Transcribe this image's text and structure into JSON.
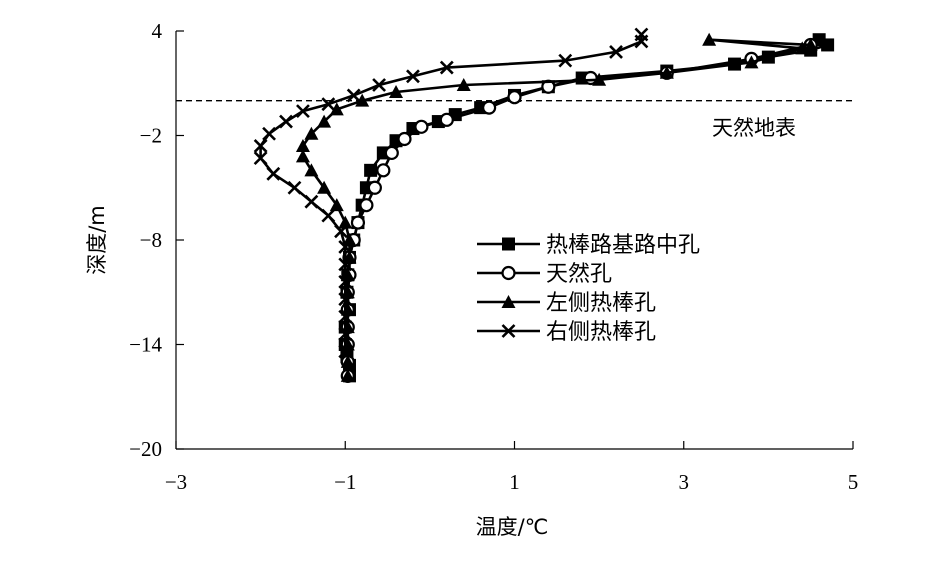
{
  "chart_data": {
    "type": "line",
    "xlabel": "温度/℃",
    "ylabel": "深度/m",
    "xlim": [
      -3,
      5
    ],
    "ylim": [
      -20,
      4
    ],
    "xticks": [
      "−3",
      "−1",
      "1",
      "3",
      "5"
    ],
    "yticks": [
      "4",
      "−2",
      "−8",
      "−14",
      "−20"
    ],
    "legend_position": "center-right",
    "grid": false,
    "annotation": {
      "text": "天然地表",
      "depth": 0.0
    },
    "series": [
      {
        "name": "热棒路基路中孔",
        "marker": "square",
        "points": [
          [
            4.6,
            3.5
          ],
          [
            4.7,
            3.2
          ],
          [
            4.5,
            2.9
          ],
          [
            4.0,
            2.5
          ],
          [
            3.6,
            2.1
          ],
          [
            2.8,
            1.7
          ],
          [
            1.8,
            1.3
          ],
          [
            1.4,
            0.8
          ],
          [
            1.0,
            0.3
          ],
          [
            0.6,
            -0.4
          ],
          [
            0.3,
            -0.8
          ],
          [
            0.1,
            -1.2
          ],
          [
            -0.2,
            -1.6
          ],
          [
            -0.4,
            -2.3
          ],
          [
            -0.55,
            -3.0
          ],
          [
            -0.7,
            -4.0
          ],
          [
            -0.75,
            -5.0
          ],
          [
            -0.8,
            -6.0
          ],
          [
            -0.85,
            -7.0
          ],
          [
            -0.9,
            -8.0
          ],
          [
            -0.95,
            -9.0
          ],
          [
            -0.97,
            -10.0
          ],
          [
            -0.98,
            -11.0
          ],
          [
            -0.95,
            -12.0
          ],
          [
            -1.0,
            -13.0
          ],
          [
            -1.0,
            -14.0
          ],
          [
            -0.98,
            -14.7
          ],
          [
            -0.95,
            -15.2
          ],
          [
            -0.95,
            -15.8
          ]
        ]
      },
      {
        "name": "天然孔",
        "marker": "circle",
        "points": [
          [
            4.5,
            3.2
          ],
          [
            3.8,
            2.4
          ],
          [
            2.8,
            1.6
          ],
          [
            1.9,
            1.3
          ],
          [
            1.4,
            0.8
          ],
          [
            1.0,
            0.2
          ],
          [
            0.7,
            -0.4
          ],
          [
            0.2,
            -1.1
          ],
          [
            -0.1,
            -1.5
          ],
          [
            -0.3,
            -2.2
          ],
          [
            -0.45,
            -3.0
          ],
          [
            -0.55,
            -4.0
          ],
          [
            -0.65,
            -5.0
          ],
          [
            -0.75,
            -6.0
          ],
          [
            -0.85,
            -7.0
          ],
          [
            -0.9,
            -8.0
          ],
          [
            -0.95,
            -9.0
          ],
          [
            -0.95,
            -10.0
          ],
          [
            -0.97,
            -11.0
          ],
          [
            -0.97,
            -12.0
          ],
          [
            -0.97,
            -13.0
          ],
          [
            -0.97,
            -14.0
          ],
          [
            -0.97,
            -15.0
          ],
          [
            -0.97,
            -15.8
          ]
        ]
      },
      {
        "name": "左侧热棒孔",
        "marker": "triangle",
        "points": [
          [
            4.5,
            3.2
          ],
          [
            3.3,
            3.5
          ],
          [
            4.4,
            3.0
          ],
          [
            3.8,
            2.2
          ],
          [
            2.8,
            1.6
          ],
          [
            2.0,
            1.2
          ],
          [
            0.4,
            0.9
          ],
          [
            -0.4,
            0.5
          ],
          [
            -0.8,
            0.0
          ],
          [
            -1.1,
            -0.5
          ],
          [
            -1.25,
            -1.2
          ],
          [
            -1.4,
            -1.9
          ],
          [
            -1.5,
            -2.6
          ],
          [
            -1.5,
            -3.2
          ],
          [
            -1.4,
            -4.0
          ],
          [
            -1.25,
            -5.0
          ],
          [
            -1.1,
            -6.0
          ],
          [
            -1.0,
            -7.0
          ],
          [
            -0.95,
            -8.0
          ],
          [
            -0.95,
            -9.0
          ],
          [
            -0.97,
            -10.0
          ],
          [
            -0.97,
            -11.0
          ],
          [
            -0.97,
            -12.0
          ],
          [
            -0.97,
            -13.0
          ],
          [
            -0.97,
            -14.0
          ],
          [
            -0.97,
            -15.0
          ],
          [
            -0.97,
            -15.8
          ]
        ]
      },
      {
        "name": "右侧热棒孔",
        "marker": "x",
        "points": [
          [
            2.5,
            3.8
          ],
          [
            2.5,
            3.4
          ],
          [
            2.2,
            2.8
          ],
          [
            1.6,
            2.3
          ],
          [
            0.2,
            1.9
          ],
          [
            -0.2,
            1.4
          ],
          [
            -0.6,
            0.9
          ],
          [
            -0.9,
            0.3
          ],
          [
            -1.2,
            -0.2
          ],
          [
            -1.5,
            -0.6
          ],
          [
            -1.7,
            -1.2
          ],
          [
            -1.9,
            -1.9
          ],
          [
            -2.0,
            -2.6
          ],
          [
            -2.0,
            -3.3
          ],
          [
            -1.85,
            -4.2
          ],
          [
            -1.6,
            -5.0
          ],
          [
            -1.4,
            -5.8
          ],
          [
            -1.2,
            -6.6
          ],
          [
            -1.05,
            -7.5
          ],
          [
            -1.0,
            -8.4
          ],
          [
            -1.0,
            -9.4
          ],
          [
            -1.0,
            -10.4
          ],
          [
            -1.0,
            -11.4
          ],
          [
            -1.0,
            -12.4
          ],
          [
            -1.0,
            -13.4
          ],
          [
            -1.0,
            -14.4
          ]
        ]
      }
    ]
  }
}
